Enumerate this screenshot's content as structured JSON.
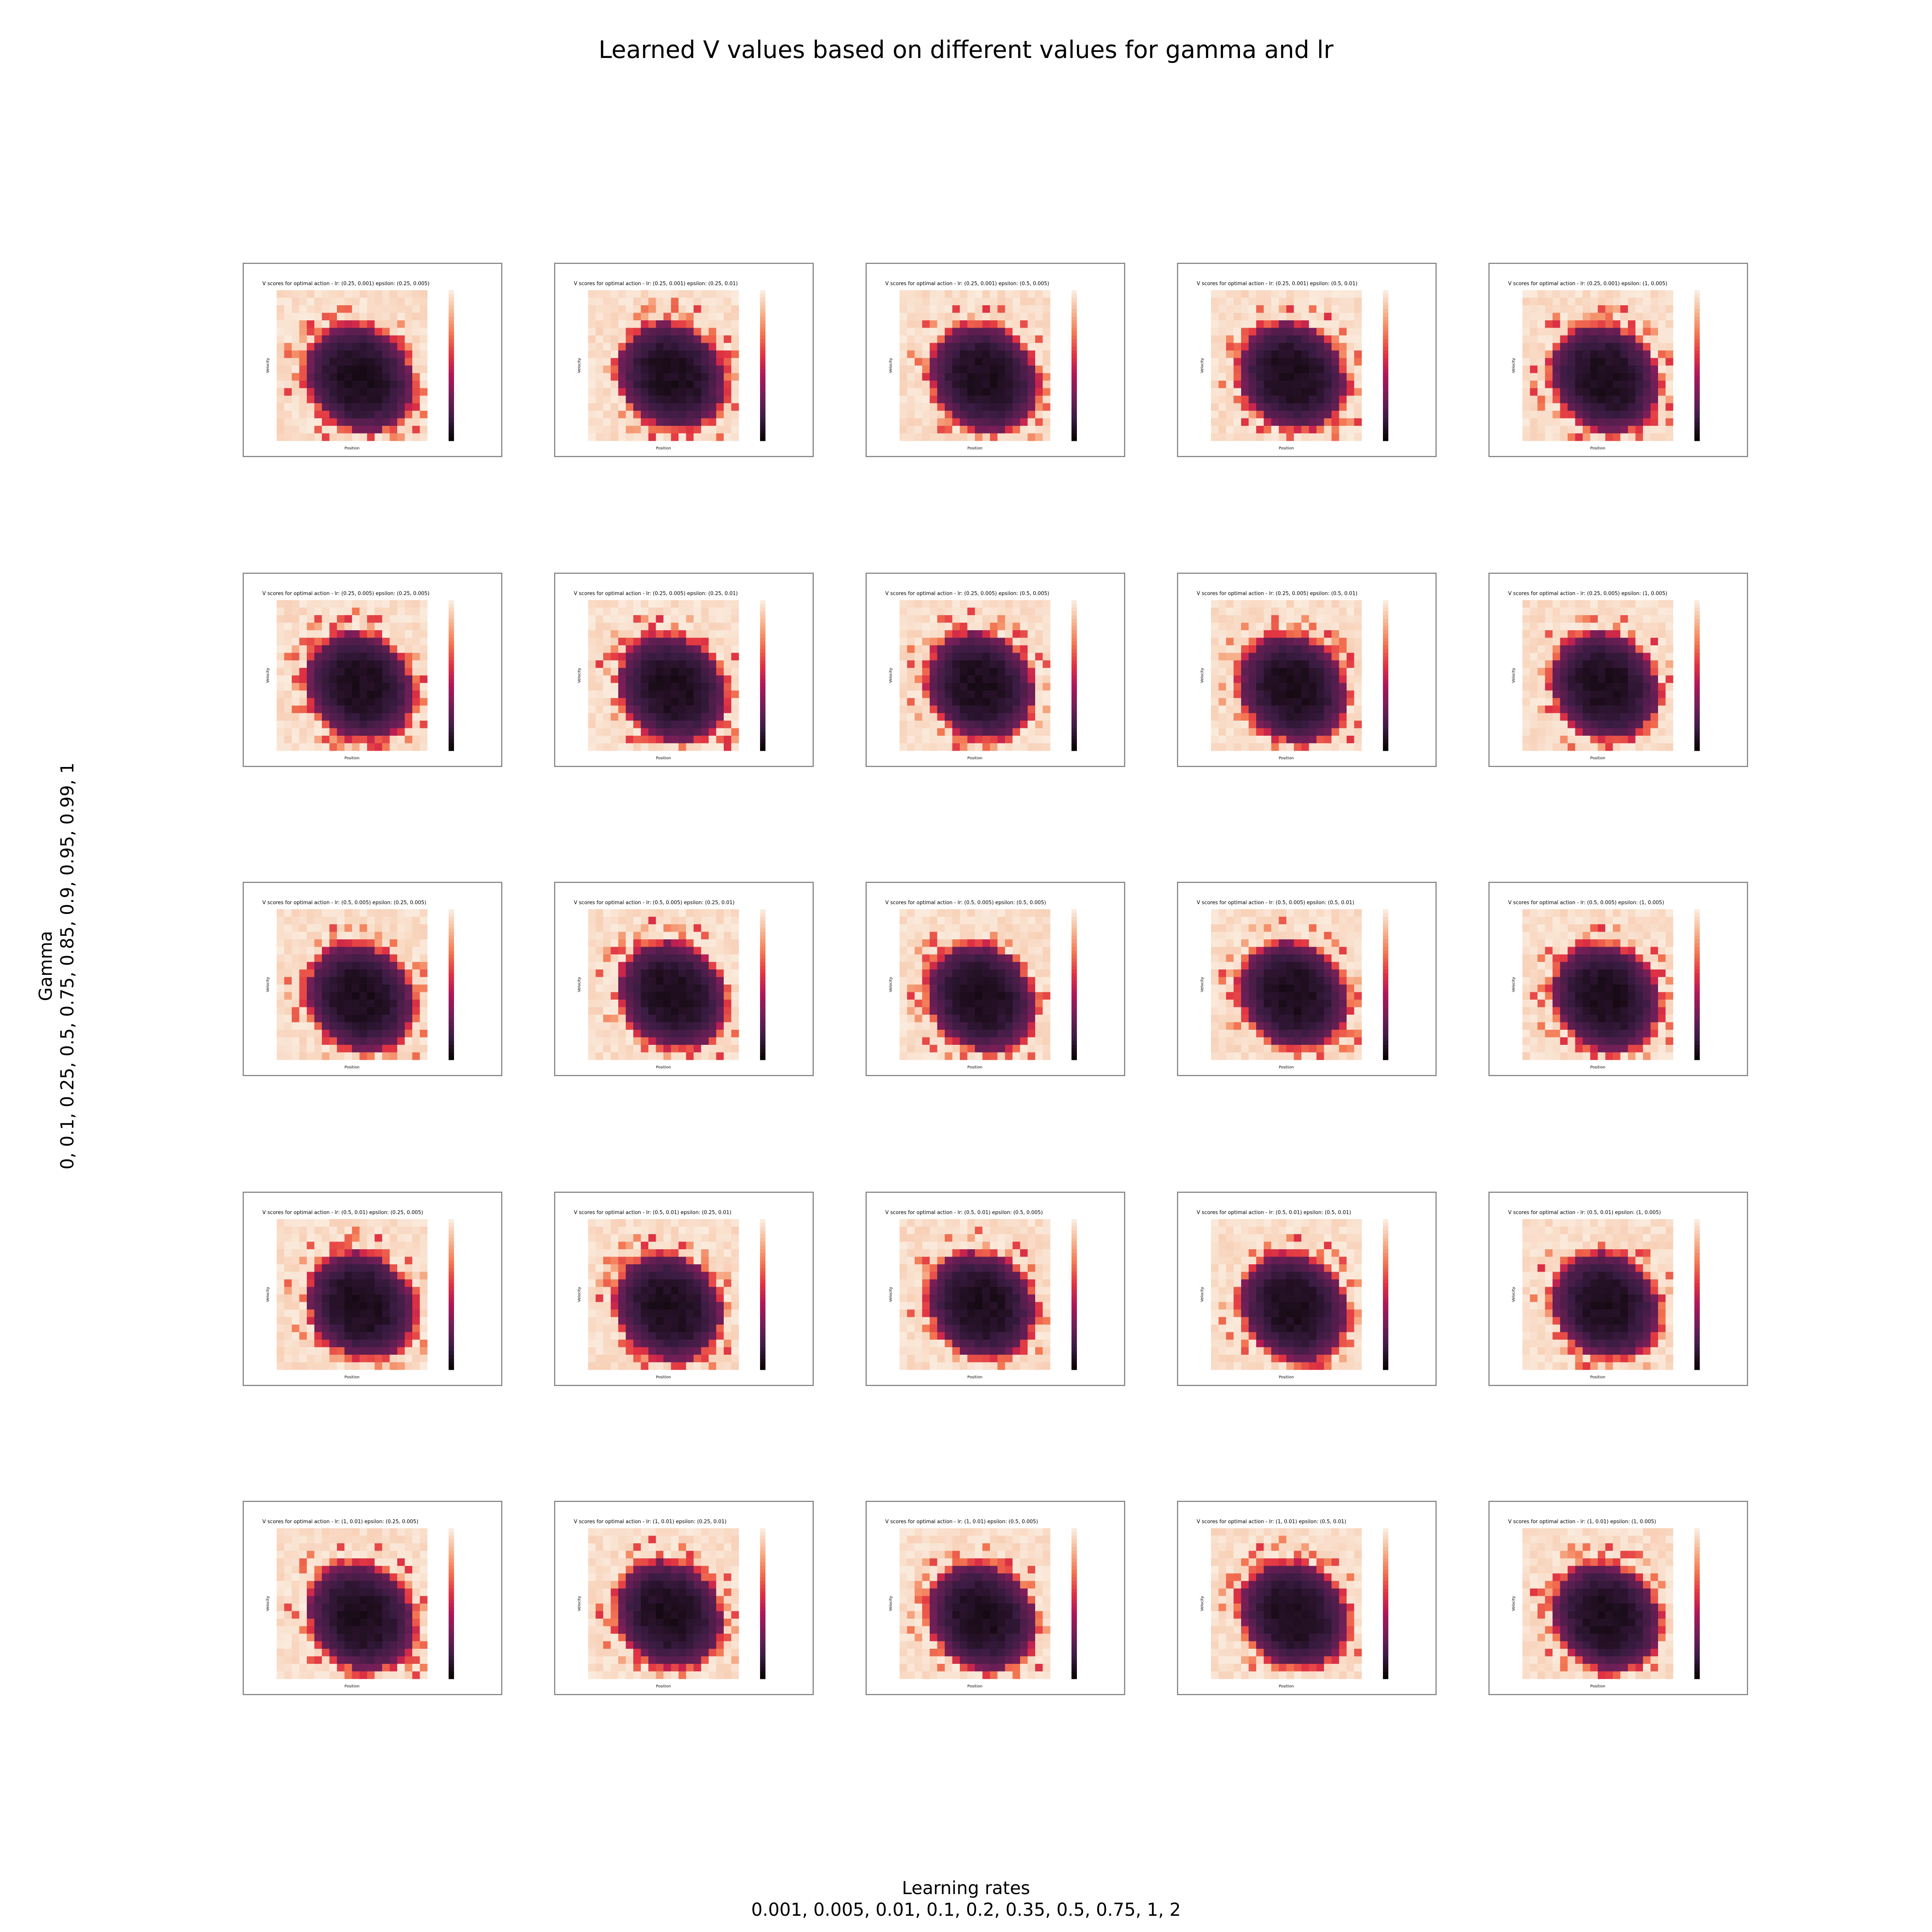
{
  "title": "Learned V values based on different values for gamma and lr",
  "y_label_line1": "Gamma",
  "y_label_line2": "0, 0.1, 0.25, 0.5, 0.75, 0.85, 0.9, 0.95, 0.99, 1",
  "x_label_line1": "Learning rates",
  "x_label_line2": "0.001, 0.005, 0.01, 0.1, 0.2, 0.35, 0.5, 0.75, 1, 2",
  "chart_data": {
    "type": "heatmap",
    "layout": "5x5 grid of heatmap subplots",
    "subplot_xlabel": "Position",
    "subplot_ylabel": "Velocity",
    "colormap": [
      "#0b0405",
      "#3b1c43",
      "#701f57",
      "#ad1759",
      "#e13342",
      "#f37651",
      "#f6b48f",
      "#faebdd"
    ],
    "subplots": [
      {
        "title": "V scores for optimal action - lr: (0.25, 0.001)  epsilon: (0.25, 0.005)"
      },
      {
        "title": "V scores for optimal action - lr: (0.25, 0.001)  epsilon: (0.25, 0.01)"
      },
      {
        "title": "V scores for optimal action - lr: (0.25, 0.001)  epsilon: (0.5, 0.005)"
      },
      {
        "title": "V scores for optimal action - lr: (0.25, 0.001)  epsilon: (0.5, 0.01)"
      },
      {
        "title": "V scores for optimal action - lr: (0.25, 0.001)  epsilon: (1, 0.005)"
      },
      {
        "title": "V scores for optimal action - lr: (0.25, 0.005)  epsilon: (0.25, 0.005)"
      },
      {
        "title": "V scores for optimal action - lr: (0.25, 0.005)  epsilon: (0.25, 0.01)"
      },
      {
        "title": "V scores for optimal action - lr: (0.25, 0.005)  epsilon: (0.5, 0.005)"
      },
      {
        "title": "V scores for optimal action - lr: (0.25, 0.005)  epsilon: (0.5, 0.01)"
      },
      {
        "title": "V scores for optimal action - lr: (0.25, 0.005)  epsilon: (1, 0.005)"
      },
      {
        "title": "V scores for optimal action - lr: (0.5, 0.005)  epsilon: (0.25, 0.005)"
      },
      {
        "title": "V scores for optimal action - lr: (0.5, 0.005)  epsilon: (0.25, 0.01)"
      },
      {
        "title": "V scores for optimal action - lr: (0.5, 0.005)  epsilon: (0.5, 0.005)"
      },
      {
        "title": "V scores for optimal action - lr: (0.5, 0.005)  epsilon: (0.5, 0.01)"
      },
      {
        "title": "V scores for optimal action - lr: (0.5, 0.005)  epsilon: (1, 0.005)"
      },
      {
        "title": "V scores for optimal action - lr: (0.5, 0.01)  epsilon: (0.25, 0.005)"
      },
      {
        "title": "V scores for optimal action - lr: (0.5, 0.01)  epsilon: (0.25, 0.01)"
      },
      {
        "title": "V scores for optimal action - lr: (0.5, 0.01)  epsilon: (0.5, 0.005)"
      },
      {
        "title": "V scores for optimal action - lr: (0.5, 0.01)  epsilon: (0.5, 0.01)"
      },
      {
        "title": "V scores for optimal action - lr: (0.5, 0.01)  epsilon: (1, 0.005)"
      },
      {
        "title": "V scores for optimal action - lr: (1, 0.01)  epsilon: (0.25, 0.005)"
      },
      {
        "title": "V scores for optimal action - lr: (1, 0.01)  epsilon: (0.25, 0.01)"
      },
      {
        "title": "V scores for optimal action - lr: (1, 0.01)  epsilon: (0.5, 0.005)"
      },
      {
        "title": "V scores for optimal action - lr: (1, 0.01)  epsilon: (0.5, 0.01)"
      },
      {
        "title": "V scores for optimal action - lr: (1, 0.01)  epsilon: (1, 0.005)"
      }
    ]
  }
}
